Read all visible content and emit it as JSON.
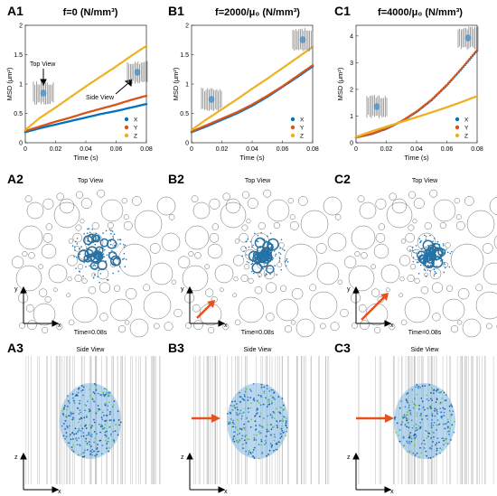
{
  "colors": {
    "x": "#0072BD",
    "y": "#D95319",
    "z": "#EDB120",
    "arrow": "#E8501E",
    "cell": "#1f77b4"
  },
  "row1": {
    "panels": [
      {
        "label": "A1",
        "title": "f=0 (N/mm³)",
        "xlabel": "Time (s)",
        "ylabel": "MSD (μm²)",
        "annot_top": "Top View",
        "annot_side": "Side View"
      },
      {
        "label": "B1",
        "title": "f=2000/μ₀ (N/mm³)",
        "xlabel": "Time (s)",
        "ylabel": "MSD (μm²)"
      },
      {
        "label": "C1",
        "title": "f=4000/μ₀ (N/mm³)",
        "xlabel": "Time (s)",
        "ylabel": "MSD (μm²)"
      }
    ]
  },
  "row2": {
    "panels": [
      {
        "label": "A2",
        "title": "Top View",
        "time": "Time=0.08s",
        "axis_v": "y",
        "axis_h": "x"
      },
      {
        "label": "B2",
        "title": "Top View",
        "time": "Time=0.08s",
        "axis_v": "y",
        "axis_h": "x"
      },
      {
        "label": "C2",
        "title": "Top View",
        "time": "Time=0.08s",
        "axis_v": "y",
        "axis_h": "x"
      }
    ]
  },
  "row3": {
    "panels": [
      {
        "label": "A3",
        "title": "Side View",
        "axis_v": "z",
        "axis_h": "x"
      },
      {
        "label": "B3",
        "title": "Side View",
        "axis_v": "z",
        "axis_h": "x"
      },
      {
        "label": "C3",
        "title": "Side View",
        "axis_v": "z",
        "axis_h": "x"
      }
    ]
  },
  "chart_data": [
    {
      "type": "scatter",
      "title": "f=0 (N/mm³)",
      "xlabel": "Time (s)",
      "ylabel": "MSD (μm²)",
      "xlim": [
        0,
        0.08
      ],
      "ylim": [
        0,
        2
      ],
      "xticks": [
        "0",
        "0.02",
        "0.04",
        "0.06",
        "0.08"
      ],
      "yticks": [
        "0",
        "0.5",
        "1",
        "1.5",
        "2"
      ],
      "legend": "bottom-right",
      "series": [
        {
          "name": "X",
          "x": [
            0,
            0.01,
            0.02,
            0.03,
            0.04,
            0.05,
            0.06,
            0.07,
            0.08
          ],
          "y": [
            0.18,
            0.25,
            0.31,
            0.37,
            0.43,
            0.49,
            0.54,
            0.6,
            0.66
          ]
        },
        {
          "name": "Y",
          "x": [
            0,
            0.01,
            0.02,
            0.03,
            0.04,
            0.05,
            0.06,
            0.07,
            0.08
          ],
          "y": [
            0.2,
            0.28,
            0.36,
            0.43,
            0.51,
            0.58,
            0.65,
            0.73,
            0.8
          ]
        },
        {
          "name": "Z",
          "x": [
            0,
            0.01,
            0.02,
            0.03,
            0.04,
            0.05,
            0.06,
            0.07,
            0.08
          ],
          "y": [
            0.22,
            0.43,
            0.6,
            0.78,
            0.96,
            1.13,
            1.3,
            1.48,
            1.65
          ]
        }
      ]
    },
    {
      "type": "scatter",
      "title": "f=2000/μ₀ (N/mm³)",
      "xlabel": "Time (s)",
      "ylabel": "MSD (μm²)",
      "xlim": [
        0,
        0.08
      ],
      "ylim": [
        0,
        2
      ],
      "xticks": [
        "0",
        "0.02",
        "0.04",
        "0.06",
        "0.08"
      ],
      "yticks": [
        "0",
        "0.5",
        "1",
        "1.5",
        "2"
      ],
      "legend": "bottom-right",
      "series": [
        {
          "name": "X",
          "x": [
            0,
            0.01,
            0.02,
            0.03,
            0.04,
            0.05,
            0.06,
            0.07,
            0.08
          ],
          "y": [
            0.18,
            0.28,
            0.39,
            0.5,
            0.63,
            0.78,
            0.95,
            1.12,
            1.3
          ]
        },
        {
          "name": "Y",
          "x": [
            0,
            0.01,
            0.02,
            0.03,
            0.04,
            0.05,
            0.06,
            0.07,
            0.08
          ],
          "y": [
            0.19,
            0.3,
            0.41,
            0.52,
            0.65,
            0.8,
            0.96,
            1.14,
            1.32
          ]
        },
        {
          "name": "Z",
          "x": [
            0,
            0.01,
            0.02,
            0.03,
            0.04,
            0.05,
            0.06,
            0.07,
            0.08
          ],
          "y": [
            0.22,
            0.4,
            0.57,
            0.74,
            0.92,
            1.09,
            1.27,
            1.45,
            1.63
          ]
        }
      ]
    },
    {
      "type": "scatter",
      "title": "f=4000/μ₀ (N/mm³)",
      "xlabel": "Time (s)",
      "ylabel": "MSD (μm²)",
      "xlim": [
        0,
        0.08
      ],
      "ylim": [
        0,
        4.4
      ],
      "xticks": [
        "0",
        "0.02",
        "0.04",
        "0.06",
        "0.08"
      ],
      "yticks": [
        "0",
        "1",
        "2",
        "3",
        "4"
      ],
      "legend": "bottom-right",
      "series": [
        {
          "name": "X",
          "x": [
            0,
            0.01,
            0.02,
            0.03,
            0.04,
            0.05,
            0.06,
            0.07,
            0.08
          ],
          "y": [
            0.2,
            0.32,
            0.52,
            0.8,
            1.15,
            1.6,
            2.15,
            2.78,
            3.45
          ]
        },
        {
          "name": "Y",
          "x": [
            0,
            0.01,
            0.02,
            0.03,
            0.04,
            0.05,
            0.06,
            0.07,
            0.08
          ],
          "y": [
            0.2,
            0.33,
            0.53,
            0.81,
            1.17,
            1.62,
            2.17,
            2.8,
            3.48
          ]
        },
        {
          "name": "Z",
          "x": [
            0,
            0.01,
            0.02,
            0.03,
            0.04,
            0.05,
            0.06,
            0.07,
            0.08
          ],
          "y": [
            0.22,
            0.42,
            0.6,
            0.78,
            0.96,
            1.14,
            1.33,
            1.53,
            1.75
          ]
        }
      ]
    }
  ]
}
